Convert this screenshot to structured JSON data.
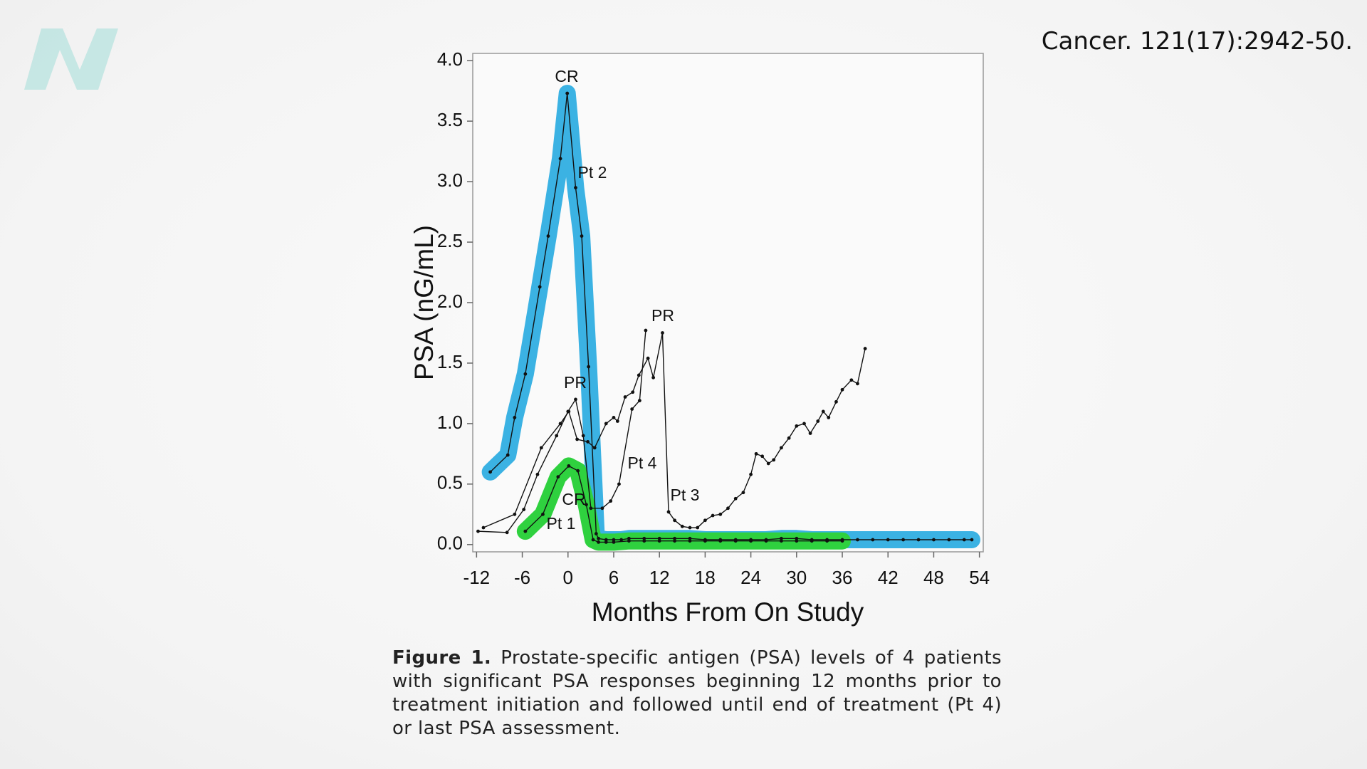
{
  "chart_data": {
    "type": "line",
    "xlabel": "Months From On Study",
    "ylabel": "PSA (nG/mL)",
    "xlim": [
      -12.5,
      54.5
    ],
    "ylim": [
      -0.06,
      4.06
    ],
    "xticks": [
      -12,
      -6,
      0,
      6,
      12,
      18,
      24,
      30,
      36,
      42,
      48,
      54
    ],
    "yticks": [
      {
        "value": 0,
        "label": "0.0"
      },
      {
        "value": 0.5,
        "label": "0.5"
      },
      {
        "value": 1,
        "label": "1.0"
      },
      {
        "value": 1.5,
        "label": "1.5"
      },
      {
        "value": 2,
        "label": "2.0"
      },
      {
        "value": 2.5,
        "label": "2.5"
      },
      {
        "value": 3,
        "label": "3.0"
      },
      {
        "value": 3.5,
        "label": "3.5"
      },
      {
        "value": 4,
        "label": "4.0"
      }
    ],
    "series": [
      {
        "name": "Pt 2",
        "color": "#111111",
        "highlight": "#3bb2e3",
        "x": [
          -10.2,
          -7.9,
          -7,
          -5.6,
          -3.7,
          -2.6,
          -1,
          -0.1,
          1,
          1.8,
          2.7,
          3.7,
          4,
          5,
          6,
          7,
          8,
          10,
          12,
          14,
          16,
          18,
          20,
          22,
          24,
          26,
          28,
          30,
          32,
          34,
          36,
          38,
          40,
          42,
          44,
          46,
          48,
          50,
          52,
          53
        ],
        "values": [
          0.6,
          0.74,
          1.05,
          1.41,
          2.13,
          2.55,
          3.19,
          3.73,
          2.95,
          2.55,
          1.47,
          0.09,
          0.05,
          0.04,
          0.04,
          0.04,
          0.05,
          0.05,
          0.05,
          0.05,
          0.05,
          0.04,
          0.04,
          0.04,
          0.04,
          0.04,
          0.05,
          0.05,
          0.04,
          0.04,
          0.04,
          0.04,
          0.04,
          0.04,
          0.04,
          0.04,
          0.04,
          0.04,
          0.04,
          0.04
        ]
      },
      {
        "name": "Pt 1",
        "color": "#111111",
        "highlight": "#2fd13f",
        "x": [
          -5.6,
          -3.3,
          -1.3,
          0.1,
          1.3,
          2.4,
          3.3,
          4,
          5,
          6,
          8,
          10,
          12,
          14,
          16,
          18,
          20,
          22,
          24,
          26,
          28,
          30,
          32,
          34,
          36
        ],
        "values": [
          0.11,
          0.25,
          0.56,
          0.65,
          0.61,
          0.33,
          0.04,
          0.02,
          0.02,
          0.02,
          0.03,
          0.03,
          0.03,
          0.03,
          0.03,
          0.03,
          0.03,
          0.03,
          0.03,
          0.03,
          0.03,
          0.03,
          0.03,
          0.03,
          0.03
        ]
      },
      {
        "name": "Pt 4",
        "color": "#111111",
        "x": [
          -11.8,
          -8,
          -5.8,
          -4,
          -1.5,
          0,
          1,
          2,
          3,
          4.5,
          5.6,
          6.7,
          8.4,
          9.4,
          10.2
        ],
        "values": [
          0.11,
          0.1,
          0.29,
          0.58,
          0.9,
          1.1,
          1.2,
          0.9,
          0.3,
          0.3,
          0.36,
          0.5,
          1.12,
          1.19,
          1.77
        ]
      },
      {
        "name": "Pt 3",
        "color": "#111111",
        "x": [
          -11.1,
          -7,
          -3.5,
          -1,
          0.1,
          1.2,
          2.6,
          3.5,
          5,
          6,
          6.5,
          7.5,
          8.5,
          9.3,
          10.5,
          11.2,
          12.4,
          13.2,
          14,
          15,
          16,
          17,
          18,
          19,
          20,
          21,
          22,
          23,
          24,
          24.7,
          25.5,
          26.3,
          27,
          28,
          29,
          30,
          31,
          31.8,
          32.8,
          33.5,
          34.2,
          35.2,
          36,
          37.2,
          38,
          39
        ],
        "values": [
          0.14,
          0.25,
          0.8,
          1.0,
          1.1,
          0.87,
          0.85,
          0.8,
          1.0,
          1.05,
          1.02,
          1.22,
          1.26,
          1.4,
          1.54,
          1.38,
          1.75,
          0.27,
          0.2,
          0.15,
          0.14,
          0.14,
          0.2,
          0.24,
          0.25,
          0.3,
          0.38,
          0.43,
          0.58,
          0.75,
          0.73,
          0.67,
          0.7,
          0.8,
          0.88,
          0.98,
          1.0,
          0.92,
          1.02,
          1.1,
          1.05,
          1.18,
          1.28,
          1.36,
          1.33,
          1.62
        ]
      }
    ],
    "annotations": [
      "CR",
      "Pt 2",
      "PR",
      "Pt 4",
      "PR",
      "Pt 3",
      "CR",
      "Pt 1"
    ]
  },
  "caption": {
    "label": "Figure 1.",
    "text": "Prostate-specific antigen (PSA) levels of 4 patients with significant PSA responses beginning 12 months prior to treatment initiation and followed until end of treatment (Pt 4) or last PSA assessment."
  },
  "citation": "Cancer. 121(17):2942-50."
}
